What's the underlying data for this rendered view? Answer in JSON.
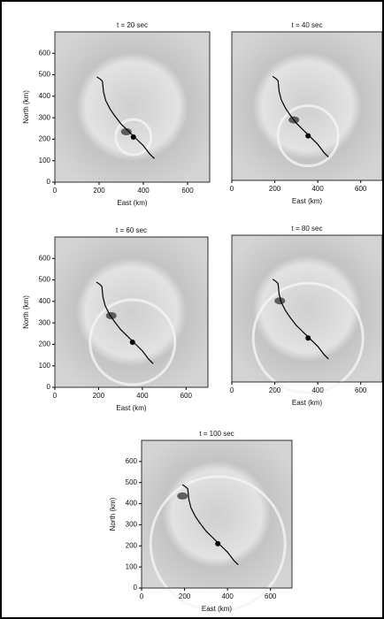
{
  "chart_data": [
    {
      "type": "line",
      "title": "t = 20 sec",
      "x_label": "East (km)",
      "y_label": "North (km)",
      "xlim": [
        0,
        700
      ],
      "ylim": [
        0,
        700
      ],
      "xticks": [
        0,
        200,
        400,
        600
      ],
      "yticks": [
        0,
        100,
        200,
        300,
        400,
        500,
        600
      ],
      "x": [
        190,
        205,
        215,
        220,
        230,
        250,
        270,
        300,
        330,
        360,
        400,
        430,
        450
      ],
      "series": [
        {
          "color": "#000000",
          "values": [
            490,
            480,
            470,
            420,
            380,
            340,
            310,
            270,
            240,
            210,
            170,
            130,
            110
          ]
        }
      ],
      "epicenter": {
        "x": 355,
        "y": 210
      }
    },
    {
      "type": "line",
      "title": "t = 40 sec",
      "x_label": "East (km)",
      "xlim": [
        0,
        700
      ],
      "ylim": [
        0,
        700
      ],
      "xticks": [
        0,
        200,
        400,
        600
      ],
      "x": [
        190,
        205,
        215,
        220,
        230,
        250,
        270,
        300,
        330,
        360,
        400,
        430,
        450
      ],
      "series": [
        {
          "color": "#000000",
          "values": [
            490,
            480,
            470,
            420,
            380,
            340,
            310,
            270,
            240,
            210,
            170,
            130,
            110
          ]
        }
      ],
      "epicenter": {
        "x": 355,
        "y": 210
      }
    },
    {
      "type": "line",
      "title": "t = 60 sec",
      "x_label": "East (km)",
      "y_label": "North (km)",
      "xlim": [
        0,
        700
      ],
      "ylim": [
        0,
        700
      ],
      "xticks": [
        0,
        200,
        400,
        600
      ],
      "yticks": [
        0,
        100,
        200,
        300,
        400,
        500,
        600
      ],
      "x": [
        190,
        205,
        215,
        220,
        230,
        250,
        270,
        300,
        330,
        360,
        400,
        430,
        450
      ],
      "series": [
        {
          "color": "#000000",
          "values": [
            490,
            480,
            470,
            420,
            380,
            340,
            310,
            270,
            240,
            210,
            170,
            130,
            110
          ]
        }
      ],
      "epicenter": {
        "x": 355,
        "y": 210
      }
    },
    {
      "type": "line",
      "title": "t = 80 sec",
      "x_label": "East (km)",
      "xlim": [
        0,
        700
      ],
      "ylim": [
        0,
        700
      ],
      "xticks": [
        0,
        200,
        400,
        600
      ],
      "x": [
        190,
        205,
        215,
        220,
        230,
        250,
        270,
        300,
        330,
        360,
        400,
        430,
        450
      ],
      "series": [
        {
          "color": "#000000",
          "values": [
            490,
            480,
            470,
            420,
            380,
            340,
            310,
            270,
            240,
            210,
            170,
            130,
            110
          ]
        }
      ],
      "epicenter": {
        "x": 355,
        "y": 210
      }
    },
    {
      "type": "line",
      "title": "t = 100 sec",
      "x_label": "East (km)",
      "y_label": "North (km)",
      "xlim": [
        0,
        700
      ],
      "ylim": [
        0,
        700
      ],
      "xticks": [
        0,
        200,
        400,
        600
      ],
      "yticks": [
        0,
        100,
        200,
        300,
        400,
        500,
        600
      ],
      "x": [
        190,
        205,
        215,
        220,
        230,
        250,
        270,
        300,
        330,
        360,
        400,
        430,
        450
      ],
      "series": [
        {
          "color": "#000000",
          "values": [
            490,
            480,
            470,
            420,
            380,
            340,
            310,
            270,
            240,
            210,
            170,
            130,
            110
          ]
        }
      ],
      "epicenter": {
        "x": 355,
        "y": 210
      }
    }
  ]
}
